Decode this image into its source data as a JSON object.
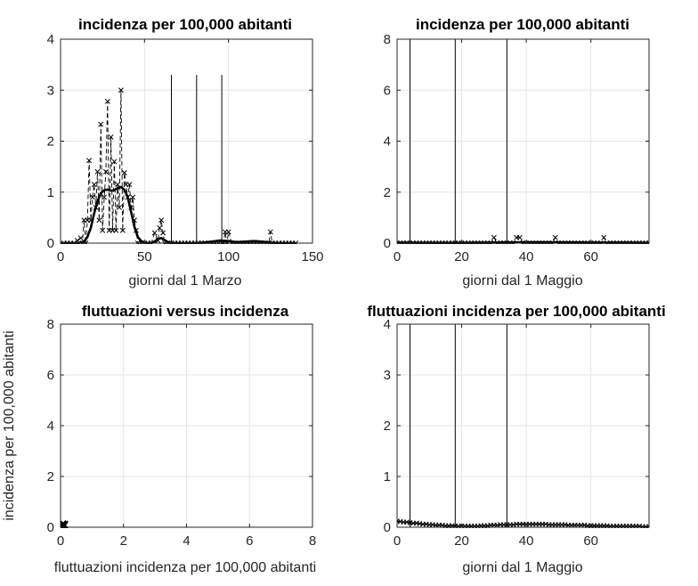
{
  "figure": {
    "background": "#ffffff",
    "axis_color": "#262626",
    "grid_color": "#e6e6e6",
    "line_color": "#000000"
  },
  "chart_data": [
    {
      "id": "p1",
      "type": "line",
      "title": "incidenza per 100,000 abitanti",
      "xlabel": "giorni dal 1 Marzo",
      "ylabel": "",
      "xlim": [
        0,
        150
      ],
      "ylim": [
        0,
        4
      ],
      "xticks": [
        0,
        50,
        100,
        150
      ],
      "yticks": [
        0,
        1,
        2,
        3,
        4
      ],
      "grid": true,
      "vlines": [
        {
          "x": 66,
          "ymax": 3.3
        },
        {
          "x": 81,
          "ymax": 3.3
        },
        {
          "x": 96,
          "ymax": 3.3
        }
      ],
      "series": [
        {
          "style": "dashed-cross",
          "x": [
            2,
            4,
            6,
            8,
            10,
            12,
            13,
            14,
            15,
            16,
            17,
            18,
            19,
            20,
            21,
            22,
            23,
            24,
            25,
            26,
            27,
            28,
            29,
            30,
            31,
            32,
            33,
            34,
            35,
            36,
            37,
            38,
            39,
            40,
            41,
            42,
            43,
            44,
            45,
            46,
            48,
            50,
            52,
            54,
            56,
            58,
            59,
            60,
            61,
            62,
            64,
            66,
            68,
            70,
            72,
            74,
            76,
            78,
            80,
            82,
            84,
            86,
            88,
            90,
            92,
            94,
            96,
            97,
            98,
            99,
            100,
            102,
            104,
            106,
            108,
            110,
            112,
            114,
            116,
            118,
            120,
            122,
            124,
            125,
            126,
            128,
            130,
            132,
            134,
            136,
            138,
            140
          ],
          "y": [
            0,
            0,
            0,
            0,
            0.05,
            0.1,
            0,
            0.45,
            0,
            0.45,
            1.62,
            0.45,
            0.9,
            1.15,
            0.7,
            1.4,
            0.45,
            2.33,
            0.25,
            0.9,
            1.4,
            2.78,
            0.25,
            2.08,
            0.25,
            1.6,
            0.25,
            1.15,
            0.7,
            3.0,
            0.25,
            1.38,
            1.15,
            0.9,
            1.15,
            0.7,
            0.9,
            0.45,
            0.25,
            0,
            0,
            0,
            0,
            0,
            0.2,
            0.05,
            0.3,
            0.45,
            0.2,
            0,
            0,
            0,
            0,
            0,
            0,
            0,
            0,
            0,
            0,
            0,
            0,
            0,
            0,
            0,
            0,
            0,
            0,
            0,
            0.22,
            0,
            0.22,
            0,
            0,
            0,
            0,
            0,
            0,
            0,
            0,
            0,
            0,
            0,
            0,
            0.22,
            0,
            0,
            0,
            0,
            0,
            0,
            0,
            0
          ]
        },
        {
          "style": "thick",
          "x": [
            0,
            4,
            8,
            10,
            12,
            14,
            16,
            18,
            20,
            22,
            24,
            26,
            28,
            30,
            32,
            34,
            36,
            38,
            40,
            42,
            44,
            46,
            48,
            50,
            52,
            54,
            56,
            58,
            60,
            62,
            64,
            66,
            68,
            70,
            75,
            80,
            85,
            90,
            95,
            100,
            105,
            110,
            115,
            120,
            125,
            130,
            135,
            140
          ],
          "y": [
            0,
            0,
            0,
            0,
            0.01,
            0.03,
            0.12,
            0.3,
            0.58,
            0.82,
            0.98,
            1.04,
            1.05,
            1.03,
            1.04,
            1.08,
            1.1,
            1.05,
            0.9,
            0.62,
            0.32,
            0.12,
            0.04,
            0.01,
            0,
            0,
            0.03,
            0.08,
            0.1,
            0.06,
            0.02,
            0,
            0,
            0,
            0,
            0,
            0.01,
            0.03,
            0.05,
            0.04,
            0.02,
            0.03,
            0.04,
            0.03,
            0.01,
            0,
            0,
            0
          ]
        }
      ]
    },
    {
      "id": "p2",
      "type": "line",
      "title": "incidenza per 100,000 abitanti",
      "xlabel": "giorni dal 1 Maggio",
      "ylabel": "",
      "xlim": [
        0,
        78
      ],
      "ylim": [
        0,
        8
      ],
      "xticks": [
        0,
        20,
        40,
        60
      ],
      "yticks": [
        0,
        2,
        4,
        6,
        8
      ],
      "grid": true,
      "vlines": [
        {
          "x": 4,
          "ymax": 8
        },
        {
          "x": 18,
          "ymax": 8
        },
        {
          "x": 34,
          "ymax": 8
        }
      ],
      "series": [
        {
          "style": "dashed-cross",
          "x": [
            0,
            1,
            2,
            3,
            4,
            5,
            6,
            7,
            8,
            9,
            10,
            11,
            12,
            13,
            14,
            15,
            16,
            17,
            18,
            19,
            20,
            21,
            22,
            23,
            24,
            25,
            26,
            27,
            28,
            29,
            30,
            31,
            32,
            33,
            34,
            35,
            36,
            37,
            38,
            39,
            40,
            41,
            42,
            43,
            44,
            45,
            46,
            47,
            48,
            49,
            50,
            51,
            52,
            53,
            54,
            55,
            56,
            57,
            58,
            59,
            60,
            61,
            62,
            63,
            64,
            65,
            66,
            67,
            68,
            69,
            70,
            71,
            72,
            73,
            74,
            75,
            76,
            77,
            78
          ],
          "y": [
            0,
            0,
            0,
            0,
            0,
            0,
            0,
            0,
            0,
            0,
            0,
            0,
            0,
            0,
            0,
            0,
            0,
            0,
            0,
            0,
            0,
            0,
            0,
            0,
            0,
            0,
            0,
            0,
            0,
            0,
            0.22,
            0,
            0,
            0,
            0,
            0,
            0,
            0.22,
            0.22,
            0,
            0,
            0,
            0,
            0,
            0,
            0,
            0,
            0,
            0,
            0.22,
            0,
            0,
            0,
            0,
            0,
            0,
            0,
            0,
            0,
            0,
            0,
            0,
            0,
            0,
            0.22,
            0,
            0,
            0,
            0,
            0,
            0,
            0,
            0,
            0,
            0,
            0,
            0,
            0,
            0
          ]
        },
        {
          "style": "thick",
          "x": [
            0,
            10,
            20,
            30,
            40,
            50,
            60,
            70,
            78
          ],
          "y": [
            0.02,
            0.01,
            0.01,
            0.02,
            0.03,
            0.03,
            0.02,
            0.02,
            0.01
          ]
        }
      ]
    },
    {
      "id": "p3",
      "type": "scatter",
      "title": "fluttuazioni versus incidenza",
      "xlabel": "fluttuazioni incidenza per 100,000 abitanti",
      "ylabel": "incidenza per 100,000 abitanti",
      "xlim": [
        0,
        8
      ],
      "ylim": [
        0,
        8
      ],
      "xticks": [
        0,
        2,
        4,
        6,
        8
      ],
      "yticks": [
        0,
        2,
        4,
        6,
        8
      ],
      "grid": true,
      "vlines": [],
      "series": [
        {
          "style": "cross",
          "x": [
            0.02,
            0.05,
            0.08,
            0.1,
            0.12,
            0.04,
            0.07,
            0.09,
            0.11,
            0.06
          ],
          "y": [
            0.02,
            0.05,
            0.08,
            0.04,
            0.1,
            0.07,
            0.03,
            0.06,
            0.09,
            0.12
          ]
        }
      ]
    },
    {
      "id": "p4",
      "type": "line",
      "title": "fluttuazioni incidenza per 100,000 abitanti",
      "xlabel": "giorni dal 1 Maggio",
      "ylabel": "",
      "xlim": [
        0,
        78
      ],
      "ylim": [
        0,
        4
      ],
      "xticks": [
        0,
        20,
        40,
        60
      ],
      "yticks": [
        0,
        1,
        2,
        3,
        4
      ],
      "grid": true,
      "vlines": [
        {
          "x": 4,
          "ymax": 4
        },
        {
          "x": 18,
          "ymax": 4
        },
        {
          "x": 34,
          "ymax": 4
        }
      ],
      "series": [
        {
          "style": "solid-cross",
          "x": [
            0,
            1,
            2,
            3,
            4,
            5,
            6,
            7,
            8,
            9,
            10,
            11,
            12,
            13,
            14,
            15,
            16,
            17,
            18,
            19,
            20,
            21,
            22,
            23,
            24,
            25,
            26,
            27,
            28,
            29,
            30,
            31,
            32,
            33,
            34,
            35,
            36,
            37,
            38,
            39,
            40,
            41,
            42,
            43,
            44,
            45,
            46,
            47,
            48,
            49,
            50,
            51,
            52,
            53,
            54,
            55,
            56,
            57,
            58,
            59,
            60,
            61,
            62,
            63,
            64,
            65,
            66,
            67,
            68,
            69,
            70,
            71,
            72,
            73,
            74,
            75,
            76,
            77,
            78
          ],
          "y": [
            0.12,
            0.11,
            0.1,
            0.1,
            0.09,
            0.08,
            0.08,
            0.07,
            0.06,
            0.06,
            0.05,
            0.05,
            0.04,
            0.04,
            0.04,
            0.03,
            0.03,
            0.03,
            0.02,
            0.02,
            0.02,
            0.02,
            0.02,
            0.02,
            0.02,
            0.02,
            0.03,
            0.03,
            0.03,
            0.04,
            0.04,
            0.04,
            0.05,
            0.05,
            0.05,
            0.05,
            0.05,
            0.06,
            0.06,
            0.06,
            0.06,
            0.06,
            0.06,
            0.06,
            0.06,
            0.06,
            0.06,
            0.05,
            0.05,
            0.05,
            0.05,
            0.05,
            0.05,
            0.04,
            0.04,
            0.04,
            0.04,
            0.04,
            0.04,
            0.03,
            0.03,
            0.03,
            0.03,
            0.03,
            0.03,
            0.03,
            0.02,
            0.02,
            0.02,
            0.02,
            0.02,
            0.02,
            0.02,
            0.02,
            0.02,
            0.02,
            0.01,
            0.01,
            0.01
          ]
        }
      ]
    }
  ]
}
